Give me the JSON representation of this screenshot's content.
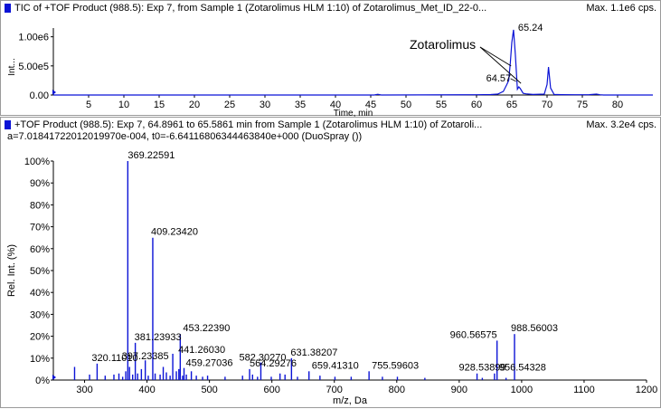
{
  "panels": {
    "tic": {
      "header": "TIC of +TOF Product (988.5): Exp 7, from Sample 1 (Zotarolimus HLM 1:10) of Zotarolimus_Met_ID_22-0...",
      "max": "Max. 1.1e6 cps."
    },
    "ms": {
      "header": "+TOF Product (988.5): Exp 7, 64.8961 to 65.5861 min from Sample 1 (Zotarolimus HLM 1:10) of Zotaroli...",
      "subheader": "a=7.01841722012019970e-004, t0=-6.64116806344463840e+000 (DuoSpray ())",
      "max": "Max. 3.2e4 cps."
    }
  },
  "chart_data": [
    {
      "type": "line",
      "title": "",
      "xlabel": "Time, min",
      "ylabel": "Int...",
      "xlim": [
        0,
        85
      ],
      "ylim": [
        0,
        1150000
      ],
      "x_ticks": [
        5,
        10,
        15,
        20,
        25,
        30,
        35,
        40,
        45,
        50,
        55,
        60,
        65,
        70,
        75,
        80
      ],
      "y_ticks": [
        0,
        500000,
        1000000
      ],
      "y_tick_labels": [
        "0.00",
        "5.00e5",
        "1.00e6"
      ],
      "color": "#0b13d6",
      "series": [
        {
          "x": [
            0,
            45.5,
            46,
            46.5,
            60,
            62,
            63,
            63.8,
            64.3,
            64.57,
            64.8,
            65.0,
            65.24,
            65.5,
            65.8,
            66.0,
            66.2,
            66.6,
            67.0,
            68,
            69.6,
            70.0,
            70.2,
            70.5,
            71,
            72,
            74,
            76,
            77,
            77.5,
            78,
            85
          ],
          "y": [
            0,
            0,
            12000,
            0,
            4000,
            8000,
            15000,
            60000,
            180000,
            250000,
            560000,
            900000,
            1120000,
            700000,
            100000,
            140000,
            110000,
            30000,
            20000,
            10000,
            15000,
            180000,
            480000,
            120000,
            10000,
            6000,
            5000,
            6000,
            15000,
            5000,
            0,
            0
          ]
        }
      ],
      "peak_labels": [
        {
          "x": 65.24,
          "y": 1120000,
          "text": "65.24"
        },
        {
          "x": 64.57,
          "y": 250000,
          "text": "64.57"
        }
      ],
      "annotation": {
        "text": "Zotarolimus",
        "points_to": [
          [
            64.9,
            500000
          ],
          [
            66.3,
            200000
          ]
        ]
      }
    },
    {
      "type": "bar",
      "title": "",
      "xlabel": "m/z, Da",
      "ylabel": "Rel. Int. (%)",
      "xlim": [
        250,
        1200
      ],
      "ylim": [
        0,
        100
      ],
      "x_ticks": [
        300,
        400,
        500,
        600,
        700,
        800,
        900,
        1000,
        1100,
        1200
      ],
      "y_ticks": [
        0,
        10,
        20,
        30,
        40,
        50,
        60,
        70,
        80,
        90,
        100
      ],
      "y_tick_labels": [
        "0%",
        "10%",
        "20%",
        "30%",
        "40%",
        "50%",
        "60%",
        "70%",
        "80%",
        "90%",
        "100%"
      ],
      "color": "#0b13d6",
      "peaks": [
        {
          "x": 369.22591,
          "y": 100,
          "label": "369.22591"
        },
        {
          "x": 409.2342,
          "y": 65,
          "label": "409.23420"
        },
        {
          "x": 453.2239,
          "y": 21,
          "label": "453.22390"
        },
        {
          "x": 381.23933,
          "y": 17,
          "label": "381.23933"
        },
        {
          "x": 441.2603,
          "y": 12,
          "label": "441.26030"
        },
        {
          "x": 397.23385,
          "y": 9,
          "label": "397.23385"
        },
        {
          "x": 320.1101,
          "y": 7.5,
          "label": "320.11010"
        },
        {
          "x": 459.27036,
          "y": 5.5,
          "label": "459.27036"
        },
        {
          "x": 582.3027,
          "y": 8,
          "label": "582.30270"
        },
        {
          "x": 564.29276,
          "y": 5,
          "label": "564.29276"
        },
        {
          "x": 631.38207,
          "y": 10,
          "label": "631.38207"
        },
        {
          "x": 659.4131,
          "y": 4,
          "label": "659.41310"
        },
        {
          "x": 755.59603,
          "y": 4,
          "label": "755.59603"
        },
        {
          "x": 960.56575,
          "y": 18,
          "label": "960.56575"
        },
        {
          "x": 988.56003,
          "y": 21,
          "label": "988.56003"
        },
        {
          "x": 928.53899,
          "y": 3,
          "label": "928.53899"
        },
        {
          "x": 956.54328,
          "y": 3,
          "label": "956.54328"
        },
        {
          "x": 284,
          "y": 6
        },
        {
          "x": 308,
          "y": 2.5
        },
        {
          "x": 333,
          "y": 2
        },
        {
          "x": 347,
          "y": 2.5
        },
        {
          "x": 355,
          "y": 3
        },
        {
          "x": 361,
          "y": 1.5
        },
        {
          "x": 366,
          "y": 4
        },
        {
          "x": 372,
          "y": 6
        },
        {
          "x": 377,
          "y": 2.5
        },
        {
          "x": 385,
          "y": 3
        },
        {
          "x": 391,
          "y": 5
        },
        {
          "x": 402,
          "y": 2
        },
        {
          "x": 413,
          "y": 3
        },
        {
          "x": 421,
          "y": 2.5
        },
        {
          "x": 426,
          "y": 6
        },
        {
          "x": 431,
          "y": 3.5
        },
        {
          "x": 437,
          "y": 2
        },
        {
          "x": 447,
          "y": 4
        },
        {
          "x": 451,
          "y": 5
        },
        {
          "x": 457,
          "y": 2
        },
        {
          "x": 463,
          "y": 2.5
        },
        {
          "x": 471,
          "y": 4
        },
        {
          "x": 479,
          "y": 2
        },
        {
          "x": 489,
          "y": 1.5
        },
        {
          "x": 497,
          "y": 2
        },
        {
          "x": 525,
          "y": 1.5
        },
        {
          "x": 553,
          "y": 2
        },
        {
          "x": 569,
          "y": 2.5
        },
        {
          "x": 577,
          "y": 1.5
        },
        {
          "x": 599,
          "y": 1.5
        },
        {
          "x": 613,
          "y": 3
        },
        {
          "x": 621,
          "y": 2.5
        },
        {
          "x": 641,
          "y": 1.5
        },
        {
          "x": 677,
          "y": 2
        },
        {
          "x": 701,
          "y": 1.5
        },
        {
          "x": 727,
          "y": 1.5
        },
        {
          "x": 777,
          "y": 1.5
        },
        {
          "x": 801,
          "y": 1.5
        },
        {
          "x": 845,
          "y": 1
        },
        {
          "x": 937,
          "y": 1
        },
        {
          "x": 975,
          "y": 1
        }
      ]
    }
  ]
}
